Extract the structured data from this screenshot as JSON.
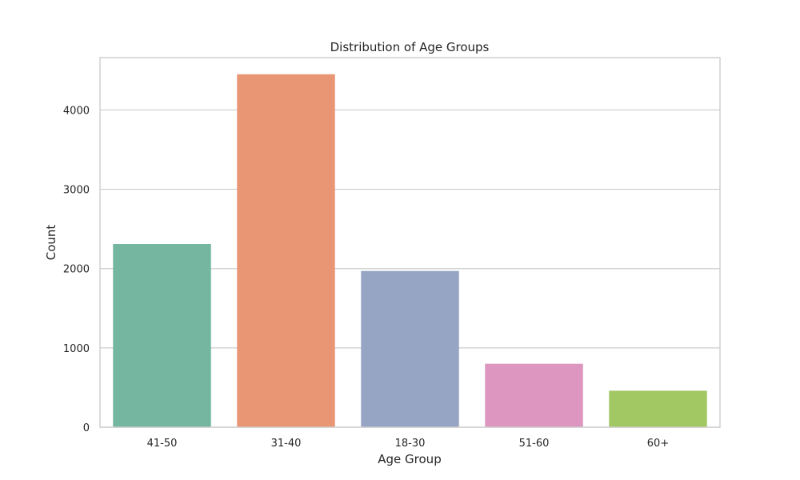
{
  "chart_data": {
    "type": "bar",
    "title": "Distribution of Age Groups",
    "xlabel": "Age Group",
    "ylabel": "Count",
    "categories": [
      "41-50",
      "31-40",
      "18-30",
      "51-60",
      "60+"
    ],
    "values": [
      2310,
      4450,
      1970,
      800,
      460
    ],
    "colors": [
      "#74b69f",
      "#e99675",
      "#95a5c3",
      "#dc96c0",
      "#a2c863"
    ],
    "ylim": [
      0,
      4660
    ],
    "yticks": [
      0,
      1000,
      2000,
      3000,
      4000
    ],
    "grid": true,
    "legend": "none"
  }
}
